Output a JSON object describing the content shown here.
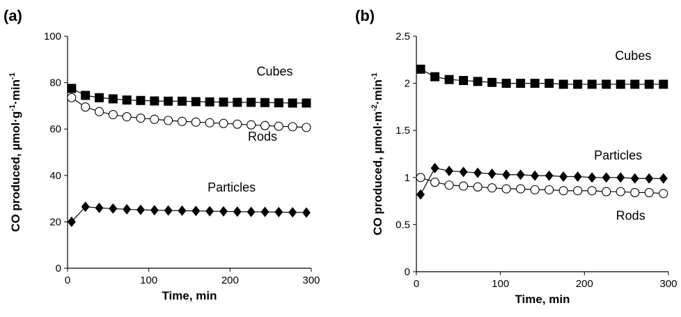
{
  "chart_data": [
    {
      "panel": "(a)",
      "type": "line",
      "xlabel": "Time, min",
      "ylabel_main": "CO produced, µmol·g",
      "ylabel_sup1": "-1",
      "ylabel_mid": "·min",
      "ylabel_sup2": "-1",
      "xlim": [
        0,
        300
      ],
      "ylim": [
        0,
        100
      ],
      "xticks": [
        0,
        100,
        200,
        300
      ],
      "yticks": [
        0,
        20,
        40,
        60,
        80,
        100
      ],
      "grid": false,
      "series": [
        {
          "name": "Cubes",
          "marker": "square-filled",
          "x": [
            5,
            22,
            39,
            56,
            73,
            90,
            107,
            124,
            141,
            158,
            175,
            192,
            209,
            226,
            243,
            260,
            277,
            294
          ],
          "y": [
            77.5,
            74.5,
            73.5,
            73,
            72.5,
            72.3,
            72.1,
            72,
            72,
            71.8,
            71.7,
            71.6,
            71.5,
            71.5,
            71.4,
            71.3,
            71.2,
            71.2
          ]
        },
        {
          "name": "Rods",
          "marker": "circle-open",
          "x": [
            5,
            22,
            39,
            56,
            73,
            90,
            107,
            124,
            141,
            158,
            175,
            192,
            209,
            226,
            243,
            260,
            277,
            294
          ],
          "y": [
            73.5,
            69.5,
            67.5,
            66.2,
            65.3,
            64.7,
            64.2,
            63.7,
            63.3,
            63,
            62.7,
            62.4,
            62.1,
            61.8,
            61.5,
            61.2,
            61,
            60.7
          ]
        },
        {
          "name": "Particles",
          "marker": "diamond-filled",
          "x": [
            5,
            22,
            39,
            56,
            73,
            90,
            107,
            124,
            141,
            158,
            175,
            192,
            209,
            226,
            243,
            260,
            277,
            294
          ],
          "y": [
            20,
            26.5,
            26,
            25.7,
            25.4,
            25.2,
            25,
            24.9,
            24.8,
            24.7,
            24.6,
            24.5,
            24.4,
            24.3,
            24.3,
            24.2,
            24.1,
            24
          ]
        }
      ],
      "labels": [
        {
          "text": "Cubes",
          "x": 255,
          "y": 83
        },
        {
          "text": "Rods",
          "x": 240,
          "y": 55
        },
        {
          "text": "Particles",
          "x": 202,
          "y": 33
        }
      ]
    },
    {
      "panel": "(b)",
      "type": "line",
      "xlabel": "Time, min",
      "ylabel_main": "CO produced, µmol·m",
      "ylabel_sup1": "-2",
      "ylabel_mid": "·min",
      "ylabel_sup2": "-1",
      "xlim": [
        0,
        300
      ],
      "ylim": [
        0,
        2.5
      ],
      "xticks": [
        0,
        100,
        200,
        300
      ],
      "yticks": [
        0,
        0.5,
        1,
        1.5,
        2,
        2.5
      ],
      "ytick_labels": [
        "0",
        "0.5",
        "1",
        "1.5",
        "2",
        "2.5"
      ],
      "grid": false,
      "series": [
        {
          "name": "Cubes",
          "marker": "square-filled",
          "x": [
            5,
            22,
            39,
            56,
            73,
            90,
            107,
            124,
            141,
            158,
            175,
            192,
            209,
            226,
            243,
            260,
            277,
            294
          ],
          "y": [
            2.15,
            2.07,
            2.04,
            2.03,
            2.02,
            2.01,
            2.0,
            2.0,
            2.0,
            2.0,
            1.99,
            1.99,
            1.99,
            1.99,
            1.99,
            1.99,
            1.99,
            1.99
          ]
        },
        {
          "name": "Particles",
          "marker": "diamond-filled",
          "x": [
            5,
            22,
            39,
            56,
            73,
            90,
            107,
            124,
            141,
            158,
            175,
            192,
            209,
            226,
            243,
            260,
            277,
            294
          ],
          "y": [
            0.82,
            1.1,
            1.07,
            1.06,
            1.05,
            1.04,
            1.03,
            1.03,
            1.02,
            1.02,
            1.01,
            1.01,
            1.0,
            1.0,
            1.0,
            0.99,
            0.99,
            0.99
          ]
        },
        {
          "name": "Rods",
          "marker": "circle-open",
          "x": [
            5,
            22,
            39,
            56,
            73,
            90,
            107,
            124,
            141,
            158,
            175,
            192,
            209,
            226,
            243,
            260,
            277,
            294
          ],
          "y": [
            1.0,
            0.95,
            0.92,
            0.91,
            0.9,
            0.89,
            0.88,
            0.88,
            0.87,
            0.87,
            0.86,
            0.86,
            0.86,
            0.85,
            0.85,
            0.84,
            0.84,
            0.83
          ]
        }
      ],
      "labels": [
        {
          "text": "Cubes",
          "x": 258,
          "y": 2.25
        },
        {
          "text": "Particles",
          "x": 240,
          "y": 1.19
        },
        {
          "text": "Rods",
          "x": 255,
          "y": 0.55
        }
      ]
    }
  ]
}
